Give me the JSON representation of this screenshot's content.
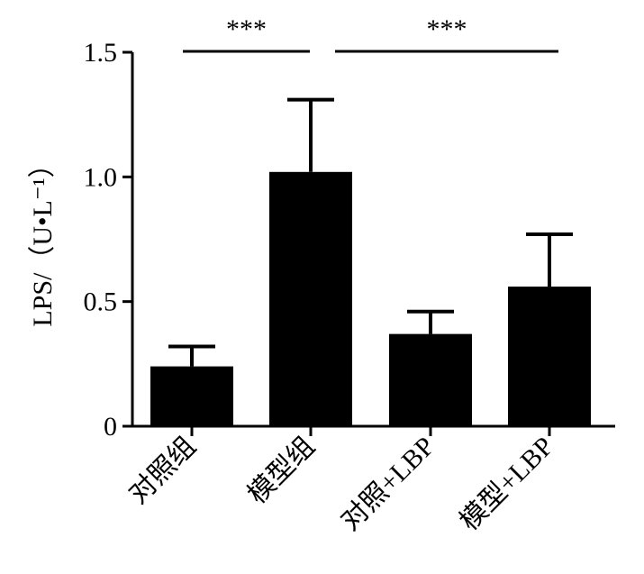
{
  "chart_data": {
    "type": "bar",
    "title": "",
    "xlabel": "",
    "ylabel": "LPS/（U•L⁻¹）",
    "ylim": [
      0,
      1.5
    ],
    "yticks": [
      {
        "value": 0,
        "label": "0"
      },
      {
        "value": 0.5,
        "label": "0.5"
      },
      {
        "value": 1.0,
        "label": "1.0"
      },
      {
        "value": 1.5,
        "label": "1.5"
      }
    ],
    "categories": [
      "对照组",
      "模型组",
      "对照+LBP",
      "模型+LBP"
    ],
    "values": [
      0.24,
      1.02,
      0.37,
      0.56
    ],
    "errors": [
      0.08,
      0.29,
      0.09,
      0.21
    ],
    "bar_color": "#000000",
    "grid": false,
    "significance": [
      {
        "from": 0,
        "to": 1,
        "label": "***"
      },
      {
        "from": 1,
        "to": 3,
        "label": "***"
      }
    ]
  }
}
